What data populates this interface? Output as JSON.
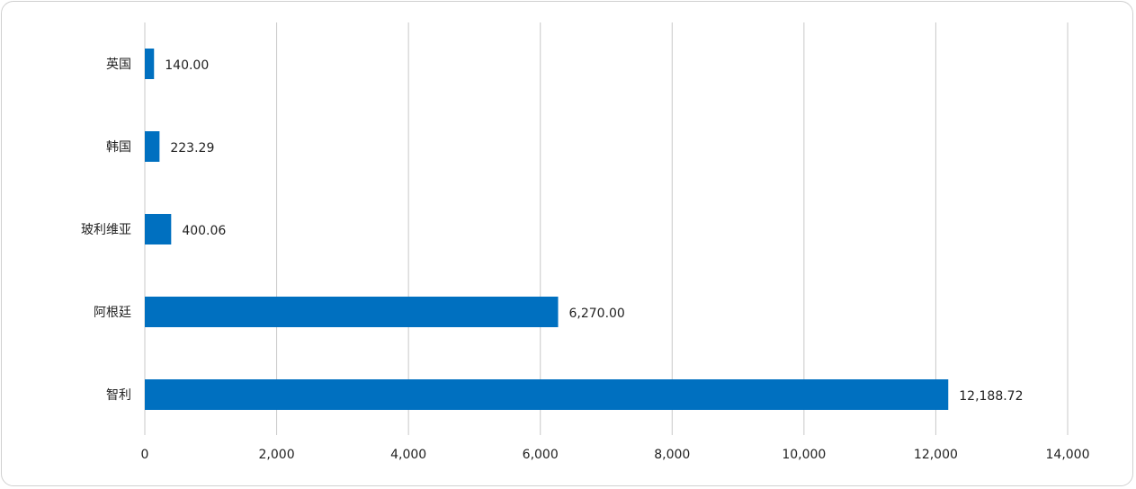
{
  "chart_data": {
    "type": "bar",
    "orientation": "horizontal",
    "categories": [
      "英国",
      "韩国",
      "玻利维亚",
      "阿根廷",
      "智利"
    ],
    "values": [
      140.0,
      223.29,
      400.06,
      6270.0,
      12188.72
    ],
    "data_labels": [
      "140.00",
      "223.29",
      "400.06",
      "6,270.00",
      "12,188.72"
    ],
    "x_ticks": [
      0,
      2000,
      4000,
      6000,
      8000,
      10000,
      12000,
      14000
    ],
    "x_tick_labels": [
      "0",
      "2,000",
      "4,000",
      "6,000",
      "8,000",
      "10,000",
      "12,000",
      "14,000"
    ],
    "xlim": [
      0,
      14000
    ],
    "title": "",
    "xlabel": "",
    "ylabel": "",
    "grid": "vertical",
    "legend": "none",
    "bar_color": "#0070c0",
    "grid_color": "#c8c8c8"
  }
}
